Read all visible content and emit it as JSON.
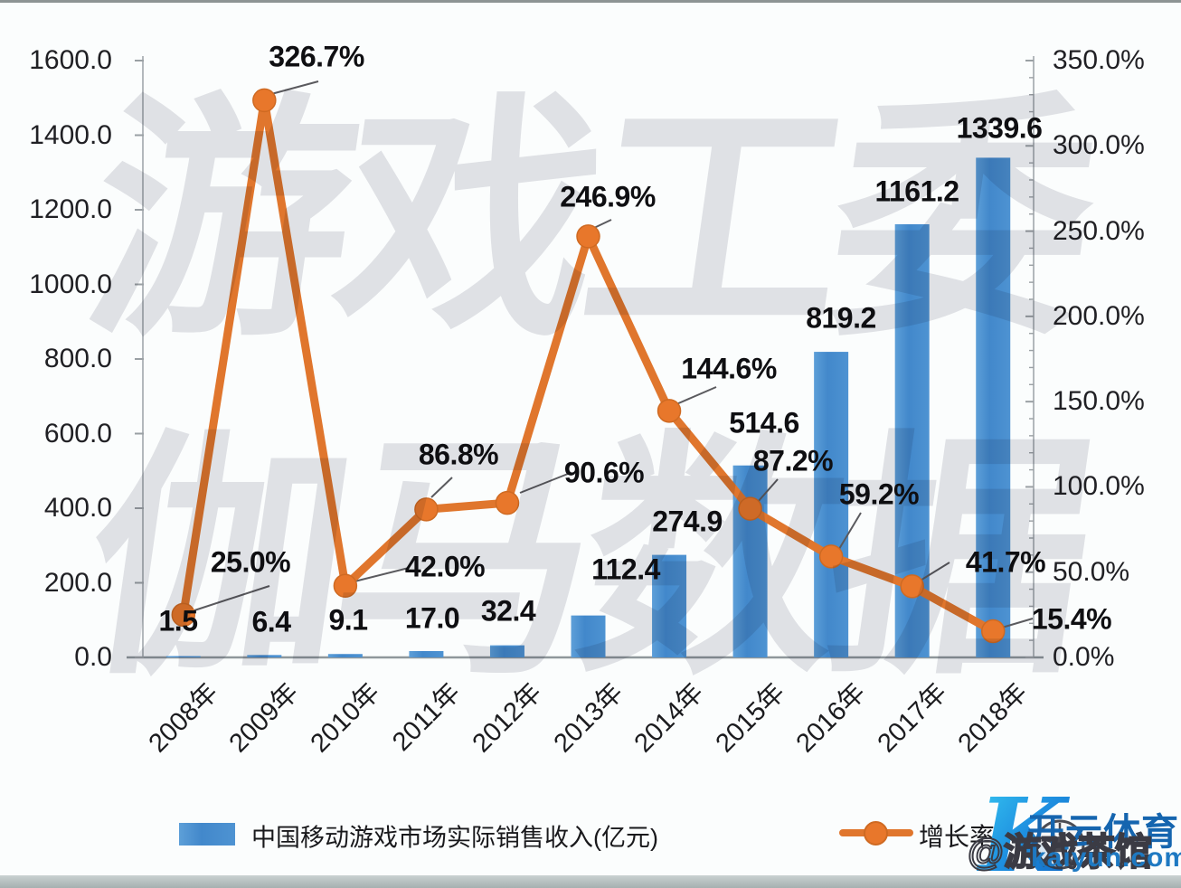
{
  "watermarks": {
    "top": "游戏工委",
    "bottom": "伽马数据",
    "handle": "@游戏茶馆"
  },
  "branding": {
    "logo_letter": "K",
    "logo_text": "开云体育",
    "logo_url_text": "kaiyun.com"
  },
  "chart_data": {
    "type": "bar+line combo",
    "categories": [
      "2008年",
      "2009年",
      "2010年",
      "2011年",
      "2012年",
      "2013年",
      "2014年",
      "2015年",
      "2016年",
      "2017年",
      "2018年"
    ],
    "series": [
      {
        "name": "中国移动游戏市场实际销售收入(亿元)",
        "type": "bar",
        "axis": "left",
        "color": "#4a90ce",
        "values": [
          1.5,
          6.4,
          9.1,
          17.0,
          32.4,
          112.4,
          274.9,
          514.6,
          819.2,
          1161.2,
          1339.6
        ],
        "labels": [
          "1.5",
          "6.4",
          "9.1",
          "17.0",
          "32.4",
          "112.4",
          "274.9",
          "514.6",
          "819.2",
          "1161.2",
          "1339.6"
        ]
      },
      {
        "name": "增长率",
        "type": "line",
        "axis": "right",
        "color": "#e0762d",
        "values": [
          25.0,
          326.7,
          42.0,
          86.8,
          90.6,
          246.9,
          144.6,
          87.2,
          59.2,
          41.7,
          15.4
        ],
        "labels": [
          "25.0%",
          "326.7%",
          "42.0%",
          "86.8%",
          "90.6%",
          "246.9%",
          "144.6%",
          "87.2%",
          "59.2%",
          "41.7%",
          "15.4%"
        ]
      }
    ],
    "left_axis": {
      "ticks": [
        "0.0",
        "200.0",
        "400.0",
        "600.0",
        "800.0",
        "1000.0",
        "1200.0",
        "1400.0",
        "1600.0"
      ],
      "range": [
        0,
        1600
      ]
    },
    "right_axis": {
      "ticks": [
        "0.0%",
        "50.0%",
        "100.0%",
        "150.0%",
        "200.0%",
        "250.0%",
        "300.0%",
        "350.0%"
      ],
      "range": [
        0,
        350
      ]
    },
    "grid": "off",
    "legend_position": "bottom"
  }
}
